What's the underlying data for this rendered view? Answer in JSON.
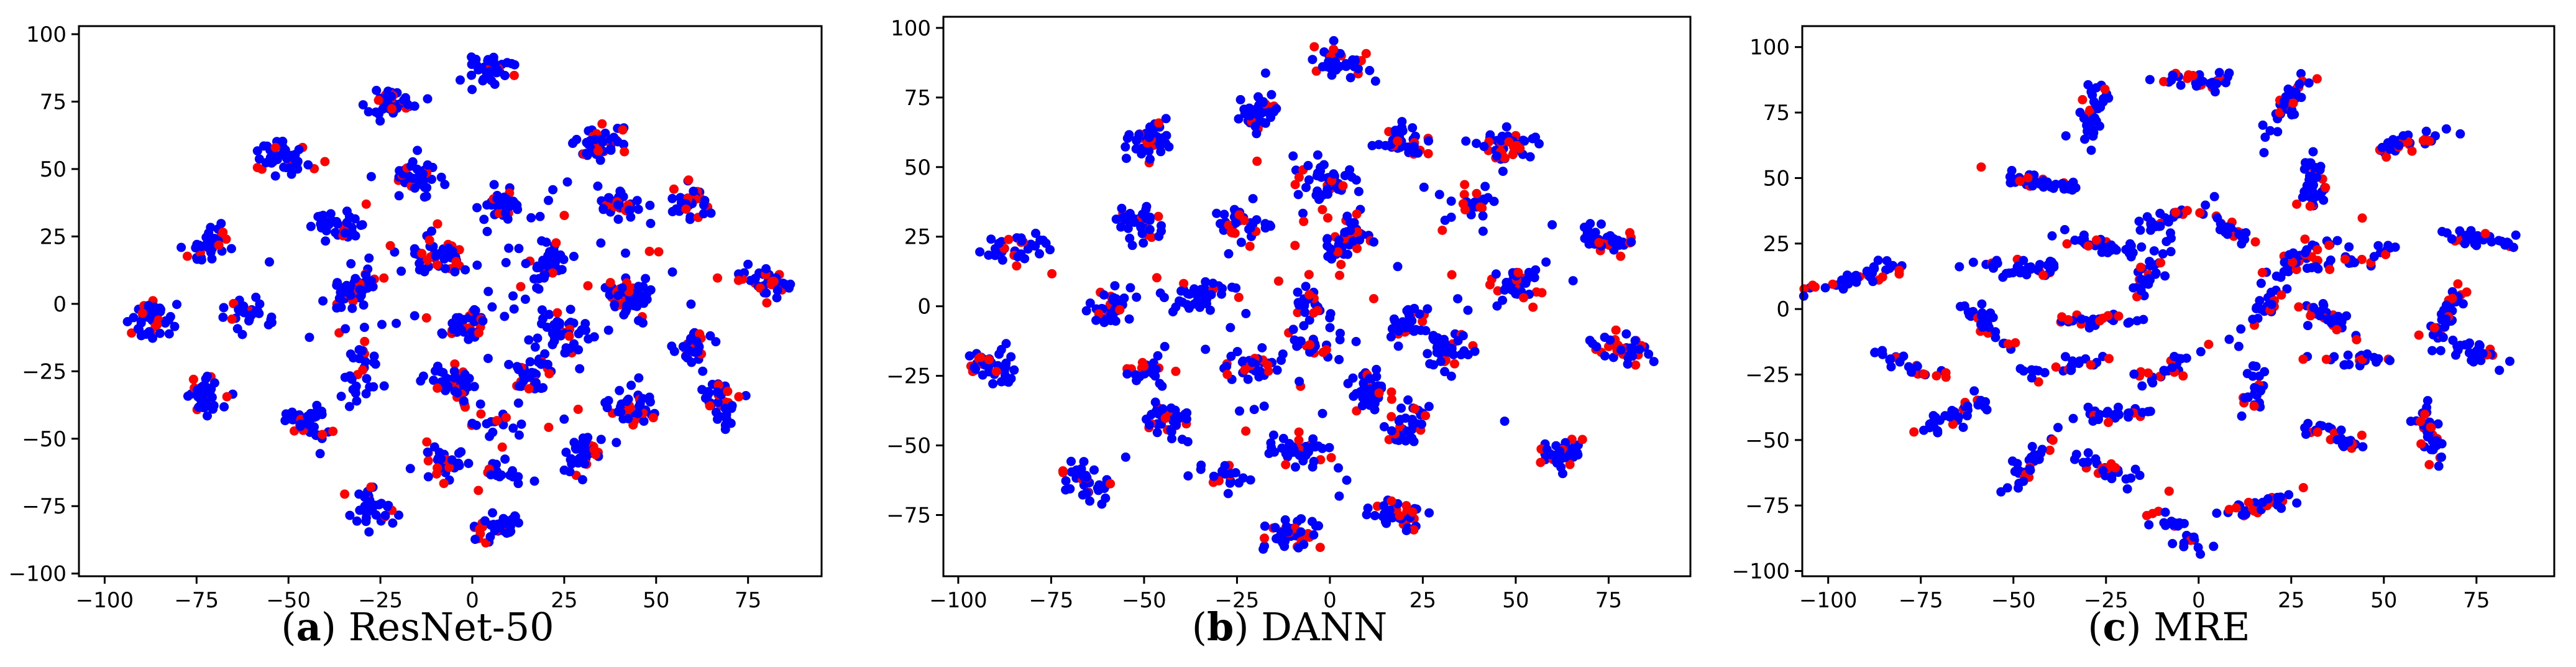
{
  "figure": {
    "panels": [
      {
        "letter": "a",
        "name": "ResNet-50"
      },
      {
        "letter": "b",
        "name": "DANN"
      },
      {
        "letter": "c",
        "name": "MRE"
      }
    ]
  },
  "colors": {
    "source": "#ff0000",
    "target": "#0000ff"
  },
  "chart_data": [
    {
      "type": "scatter",
      "title": "",
      "caption": "(a) ResNet-50",
      "xlabel": "",
      "ylabel": "",
      "xlim": [
        -107,
        95
      ],
      "ylim": [
        -101,
        103
      ],
      "xticks": [
        -100,
        -75,
        -50,
        -25,
        0,
        25,
        50,
        75
      ],
      "yticks": [
        -100,
        -75,
        -50,
        -25,
        0,
        25,
        50,
        75,
        100
      ],
      "grid": false,
      "clusters": [
        {
          "x": 5,
          "y": 87,
          "n": 40
        },
        {
          "x": -22,
          "y": 74,
          "n": 38
        },
        {
          "x": -52,
          "y": 54,
          "n": 40
        },
        {
          "x": -15,
          "y": 47,
          "n": 36
        },
        {
          "x": 34,
          "y": 59,
          "n": 48
        },
        {
          "x": -36,
          "y": 29,
          "n": 38
        },
        {
          "x": 9,
          "y": 36,
          "n": 36
        },
        {
          "x": 40,
          "y": 37,
          "n": 34
        },
        {
          "x": 59,
          "y": 38,
          "n": 36
        },
        {
          "x": -72,
          "y": 21,
          "n": 34
        },
        {
          "x": -10,
          "y": 17,
          "n": 38
        },
        {
          "x": 21,
          "y": 15,
          "n": 42
        },
        {
          "x": -33,
          "y": 4,
          "n": 46
        },
        {
          "x": -60,
          "y": -4,
          "n": 28
        },
        {
          "x": 42,
          "y": 3,
          "n": 48
        },
        {
          "x": 80,
          "y": 8,
          "n": 36
        },
        {
          "x": -88,
          "y": -6,
          "n": 46
        },
        {
          "x": -2,
          "y": -7,
          "n": 40
        },
        {
          "x": 25,
          "y": -10,
          "n": 36
        },
        {
          "x": 60,
          "y": -14,
          "n": 36
        },
        {
          "x": -30,
          "y": -19,
          "n": 16
        },
        {
          "x": -73,
          "y": -33,
          "n": 42
        },
        {
          "x": -5,
          "y": -29,
          "n": 40
        },
        {
          "x": 16,
          "y": -26,
          "n": 36
        },
        {
          "x": -30,
          "y": -32,
          "n": 16
        },
        {
          "x": 43,
          "y": -38,
          "n": 40
        },
        {
          "x": 68,
          "y": -37,
          "n": 38
        },
        {
          "x": -45,
          "y": -45,
          "n": 42
        },
        {
          "x": 6,
          "y": -44,
          "n": 18
        },
        {
          "x": 30,
          "y": -56,
          "n": 40
        },
        {
          "x": -7,
          "y": -59,
          "n": 40
        },
        {
          "x": 8,
          "y": -62,
          "n": 16
        },
        {
          "x": -27,
          "y": -76,
          "n": 34
        },
        {
          "x": 7,
          "y": -83,
          "n": 40
        },
        {
          "x": 5,
          "y": 5,
          "n": 90,
          "spread": 26
        }
      ]
    },
    {
      "type": "scatter",
      "title": "",
      "caption": "(b) DANN",
      "xlabel": "",
      "ylabel": "",
      "xlim": [
        -104,
        97
      ],
      "ylim": [
        -97,
        104
      ],
      "xticks": [
        -100,
        -75,
        -50,
        -25,
        0,
        25,
        50,
        75
      ],
      "yticks": [
        -75,
        -50,
        -25,
        0,
        25,
        50,
        75,
        100
      ],
      "grid": false,
      "clusters": [
        {
          "x": 3,
          "y": 87,
          "n": 40
        },
        {
          "x": -49,
          "y": 60,
          "n": 42
        },
        {
          "x": -19,
          "y": 69,
          "n": 42
        },
        {
          "x": 21,
          "y": 59,
          "n": 40
        },
        {
          "x": 48,
          "y": 58,
          "n": 44
        },
        {
          "x": -2,
          "y": 46,
          "n": 38
        },
        {
          "x": 38,
          "y": 37,
          "n": 30
        },
        {
          "x": -51,
          "y": 30,
          "n": 40
        },
        {
          "x": -25,
          "y": 30,
          "n": 36
        },
        {
          "x": 4,
          "y": 24,
          "n": 44
        },
        {
          "x": -83,
          "y": 21,
          "n": 34
        },
        {
          "x": 75,
          "y": 23,
          "n": 40
        },
        {
          "x": -35,
          "y": 3,
          "n": 40
        },
        {
          "x": -59,
          "y": -1,
          "n": 38
        },
        {
          "x": -5,
          "y": 1,
          "n": 26
        },
        {
          "x": 21,
          "y": -6,
          "n": 34
        },
        {
          "x": 50,
          "y": 8,
          "n": 40
        },
        {
          "x": -5,
          "y": -14,
          "n": 24
        },
        {
          "x": 79,
          "y": -15,
          "n": 42
        },
        {
          "x": -48,
          "y": -22,
          "n": 26
        },
        {
          "x": 32,
          "y": -17,
          "n": 40
        },
        {
          "x": -91,
          "y": -22,
          "n": 40
        },
        {
          "x": -20,
          "y": -21,
          "n": 36
        },
        {
          "x": 10,
          "y": -31,
          "n": 42
        },
        {
          "x": -44,
          "y": -41,
          "n": 42
        },
        {
          "x": 21,
          "y": -42,
          "n": 34
        },
        {
          "x": -7,
          "y": -52,
          "n": 40
        },
        {
          "x": 62,
          "y": -53,
          "n": 40
        },
        {
          "x": -28,
          "y": -61,
          "n": 22
        },
        {
          "x": -66,
          "y": -62,
          "n": 40
        },
        {
          "x": 18,
          "y": -75,
          "n": 40
        },
        {
          "x": -10,
          "y": -82,
          "n": 42
        },
        {
          "x": 0,
          "y": -5,
          "n": 60,
          "spread": 30
        }
      ]
    },
    {
      "type": "scatter",
      "title": "",
      "caption": "(c) MRE",
      "xlabel": "",
      "ylabel": "",
      "xlim": [
        -107,
        96
      ],
      "ylim": [
        -102,
        108
      ],
      "xticks": [
        -100,
        -75,
        -50,
        -25,
        0,
        25,
        50,
        75
      ],
      "yticks": [
        -100,
        -75,
        -50,
        -25,
        0,
        25,
        50,
        75,
        100
      ],
      "grid": false,
      "clusters": [
        {
          "x": -1,
          "y": 88,
          "n": 36
        },
        {
          "x": -29,
          "y": 73,
          "n": 38
        },
        {
          "x": 24,
          "y": 79,
          "n": 40
        },
        {
          "x": 59,
          "y": 64,
          "n": 34
        },
        {
          "x": -43,
          "y": 48,
          "n": 36
        },
        {
          "x": 31,
          "y": 47,
          "n": 40
        },
        {
          "x": -27,
          "y": 25,
          "n": 36
        },
        {
          "x": -8,
          "y": 35,
          "n": 26
        },
        {
          "x": 8,
          "y": 31,
          "n": 26
        },
        {
          "x": 75,
          "y": 27,
          "n": 34
        },
        {
          "x": -91,
          "y": 12,
          "n": 36
        },
        {
          "x": -48,
          "y": 16,
          "n": 36
        },
        {
          "x": -13,
          "y": 14,
          "n": 30
        },
        {
          "x": 27,
          "y": 19,
          "n": 38
        },
        {
          "x": 44,
          "y": 20,
          "n": 24
        },
        {
          "x": -57,
          "y": -7,
          "n": 36
        },
        {
          "x": -27,
          "y": -4,
          "n": 28
        },
        {
          "x": 16,
          "y": -2,
          "n": 26
        },
        {
          "x": 35,
          "y": -3,
          "n": 32
        },
        {
          "x": 68,
          "y": -1,
          "n": 34
        },
        {
          "x": 73,
          "y": -15,
          "n": 34
        },
        {
          "x": -78,
          "y": -21,
          "n": 26
        },
        {
          "x": -8,
          "y": -22,
          "n": 26
        },
        {
          "x": 40,
          "y": -19,
          "n": 22
        },
        {
          "x": -35,
          "y": -22,
          "n": 24
        },
        {
          "x": 15,
          "y": -30,
          "n": 26
        },
        {
          "x": -65,
          "y": -40,
          "n": 36
        },
        {
          "x": -22,
          "y": -40,
          "n": 26
        },
        {
          "x": -45,
          "y": -58,
          "n": 34
        },
        {
          "x": -25,
          "y": -61,
          "n": 26
        },
        {
          "x": 35,
          "y": -48,
          "n": 30
        },
        {
          "x": 62,
          "y": -46,
          "n": 36
        },
        {
          "x": 18,
          "y": -74,
          "n": 34
        },
        {
          "x": -5,
          "y": -85,
          "n": 30
        }
      ]
    }
  ]
}
